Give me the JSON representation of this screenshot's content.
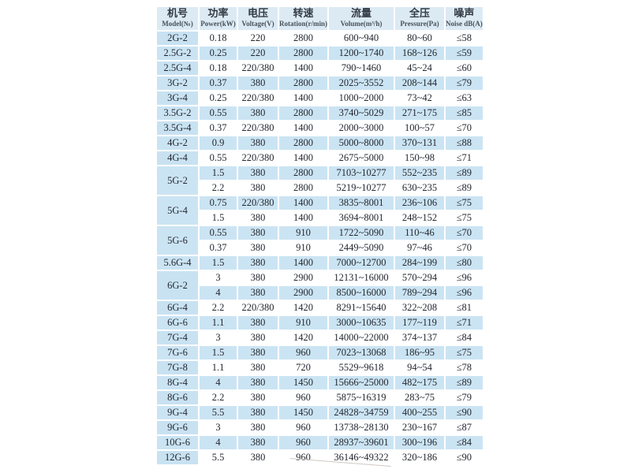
{
  "colors": {
    "page_background": "#ffffff",
    "stripe_blue": "#cbe4f3",
    "header_blue": "#dceaf4",
    "model_column_blue": "#c8e2f2",
    "text": "#242830"
  },
  "table": {
    "columns": [
      {
        "key": "model",
        "zh": "机号",
        "en": "Model(№)"
      },
      {
        "key": "power",
        "zh": "功率",
        "en": "Power(kW)"
      },
      {
        "key": "voltage",
        "zh": "电压",
        "en": "Voltage(V)"
      },
      {
        "key": "rotation",
        "zh": "转速",
        "en": "Rotation(r/min)"
      },
      {
        "key": "volume",
        "zh": "流量",
        "en": "Volume(m³/h)"
      },
      {
        "key": "pressure",
        "zh": "全压",
        "en": "Pressure(Pa)"
      },
      {
        "key": "noise",
        "zh": "噪声",
        "en": "Noise dB(A)"
      }
    ],
    "groups": [
      {
        "model": "2G-2",
        "rows": [
          {
            "power": "0.18",
            "voltage": "220",
            "rotation": "2800",
            "volume": "600~940",
            "pressure": "80~60",
            "noise": "≤58"
          }
        ]
      },
      {
        "model": "2.5G-2",
        "rows": [
          {
            "power": "0.25",
            "voltage": "220",
            "rotation": "2800",
            "volume": "1200~1740",
            "pressure": "168~126",
            "noise": "≤59"
          }
        ]
      },
      {
        "model": "2.5G-4",
        "rows": [
          {
            "power": "0.18",
            "voltage": "220/380",
            "rotation": "1400",
            "volume": "790~1460",
            "pressure": "45~24",
            "noise": "≤60"
          }
        ]
      },
      {
        "model": "3G-2",
        "rows": [
          {
            "power": "0.37",
            "voltage": "380",
            "rotation": "2800",
            "volume": "2025~3552",
            "pressure": "208~144",
            "noise": "≤79"
          }
        ]
      },
      {
        "model": "3G-4",
        "rows": [
          {
            "power": "0.25",
            "voltage": "220/380",
            "rotation": "1400",
            "volume": "1000~2000",
            "pressure": "73~42",
            "noise": "≤63"
          }
        ]
      },
      {
        "model": "3.5G-2",
        "rows": [
          {
            "power": "0.55",
            "voltage": "380",
            "rotation": "2800",
            "volume": "3740~5029",
            "pressure": "271~175",
            "noise": "≤85"
          }
        ]
      },
      {
        "model": "3.5G-4",
        "rows": [
          {
            "power": "0.37",
            "voltage": "220/380",
            "rotation": "1400",
            "volume": "2000~3000",
            "pressure": "100~57",
            "noise": "≤70"
          }
        ]
      },
      {
        "model": "4G-2",
        "rows": [
          {
            "power": "0.9",
            "voltage": "380",
            "rotation": "2800",
            "volume": "5000~8000",
            "pressure": "370~131",
            "noise": "≤88"
          }
        ]
      },
      {
        "model": "4G-4",
        "rows": [
          {
            "power": "0.55",
            "voltage": "220/380",
            "rotation": "1400",
            "volume": "2675~5000",
            "pressure": "150~98",
            "noise": "≤71"
          }
        ]
      },
      {
        "model": "5G-2",
        "rows": [
          {
            "power": "1.5",
            "voltage": "380",
            "rotation": "2800",
            "volume": "7103~10277",
            "pressure": "552~235",
            "noise": "≤89"
          },
          {
            "power": "2.2",
            "voltage": "380",
            "rotation": "2800",
            "volume": "5219~10277",
            "pressure": "630~235",
            "noise": "≤89"
          }
        ]
      },
      {
        "model": "5G-4",
        "rows": [
          {
            "power": "0.75",
            "voltage": "220/380",
            "rotation": "1400",
            "volume": "3835~8001",
            "pressure": "236~106",
            "noise": "≤75"
          },
          {
            "power": "1.5",
            "voltage": "380",
            "rotation": "1400",
            "volume": "3694~8001",
            "pressure": "248~152",
            "noise": "≤75"
          }
        ]
      },
      {
        "model": "5G-6",
        "rows": [
          {
            "power": "0.55",
            "voltage": "380",
            "rotation": "910",
            "volume": "1722~5090",
            "pressure": "110~46",
            "noise": "≤70"
          },
          {
            "power": "0.37",
            "voltage": "380",
            "rotation": "910",
            "volume": "2449~5090",
            "pressure": "97~46",
            "noise": "≤70"
          }
        ]
      },
      {
        "model": "5.6G-4",
        "rows": [
          {
            "power": "1.5",
            "voltage": "380",
            "rotation": "1400",
            "volume": "7000~12700",
            "pressure": "284~199",
            "noise": "≤80"
          }
        ]
      },
      {
        "model": "6G-2",
        "rows": [
          {
            "power": "3",
            "voltage": "380",
            "rotation": "2900",
            "volume": "12131~16000",
            "pressure": "570~294",
            "noise": "≤96"
          },
          {
            "power": "4",
            "voltage": "380",
            "rotation": "2900",
            "volume": "8500~16000",
            "pressure": "789~294",
            "noise": "≤96"
          }
        ]
      },
      {
        "model": "6G-4",
        "rows": [
          {
            "power": "2.2",
            "voltage": "220/380",
            "rotation": "1420",
            "volume": "8291~15640",
            "pressure": "322~208",
            "noise": "≤81"
          }
        ]
      },
      {
        "model": "6G-6",
        "rows": [
          {
            "power": "1.1",
            "voltage": "380",
            "rotation": "910",
            "volume": "3000~10635",
            "pressure": "177~119",
            "noise": "≤71"
          }
        ]
      },
      {
        "model": "7G-4",
        "rows": [
          {
            "power": "3",
            "voltage": "380",
            "rotation": "1420",
            "volume": "14000~22000",
            "pressure": "374~137",
            "noise": "≤84"
          }
        ]
      },
      {
        "model": "7G-6",
        "rows": [
          {
            "power": "1.5",
            "voltage": "380",
            "rotation": "960",
            "volume": "7023~13068",
            "pressure": "186~95",
            "noise": "≤75"
          }
        ]
      },
      {
        "model": "7G-8",
        "rows": [
          {
            "power": "1.1",
            "voltage": "380",
            "rotation": "720",
            "volume": "5529~9618",
            "pressure": "94~54",
            "noise": "≤78"
          }
        ]
      },
      {
        "model": "8G-4",
        "rows": [
          {
            "power": "4",
            "voltage": "380",
            "rotation": "1450",
            "volume": "15666~25000",
            "pressure": "482~175",
            "noise": "≤89"
          }
        ]
      },
      {
        "model": "8G-6",
        "rows": [
          {
            "power": "2.2",
            "voltage": "380",
            "rotation": "960",
            "volume": "5875~16319",
            "pressure": "283~75",
            "noise": "≤79"
          }
        ]
      },
      {
        "model": "9G-4",
        "rows": [
          {
            "power": "5.5",
            "voltage": "380",
            "rotation": "1450",
            "volume": "24828~34759",
            "pressure": "400~255",
            "noise": "≤90"
          }
        ]
      },
      {
        "model": "9G-6",
        "rows": [
          {
            "power": "3",
            "voltage": "380",
            "rotation": "960",
            "volume": "13738~28130",
            "pressure": "230~167",
            "noise": "≤87"
          }
        ]
      },
      {
        "model": "10G-6",
        "rows": [
          {
            "power": "4",
            "voltage": "380",
            "rotation": "960",
            "volume": "28937~39601",
            "pressure": "300~196",
            "noise": "≤84"
          }
        ]
      },
      {
        "model": "12G-6",
        "rows": [
          {
            "power": "5.5",
            "voltage": "380",
            "rotation": "960",
            "volume": "36146~49322",
            "pressure": "320~186",
            "noise": "≤90"
          }
        ]
      }
    ]
  }
}
